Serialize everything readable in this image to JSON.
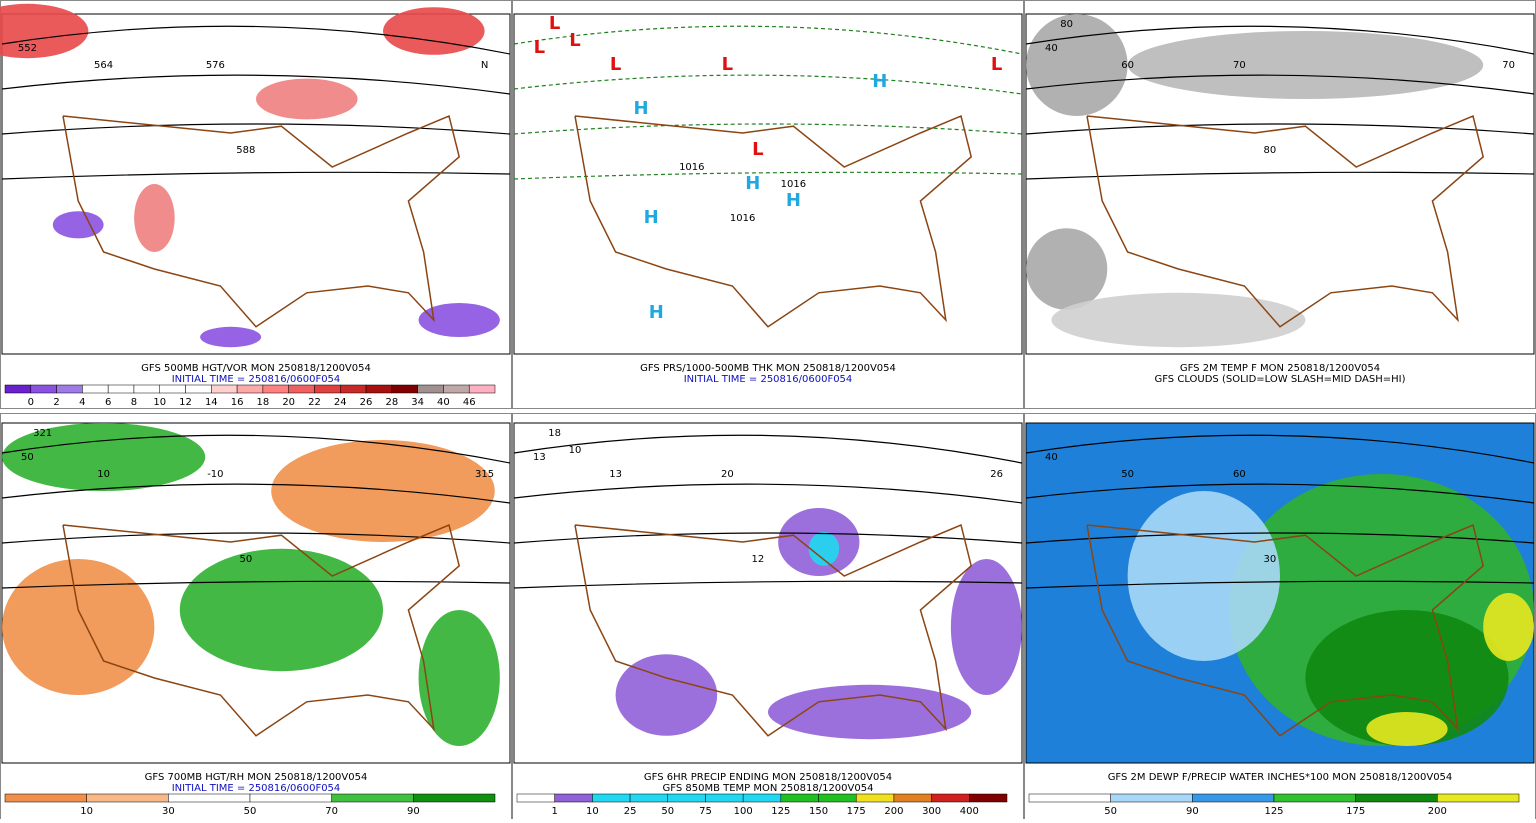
{
  "panels": [
    {
      "caption": [
        "GFS 500MB HGT/VOR MON 250818/1200V054",
        "INITIAL TIME = 250816/0600F054"
      ],
      "map_labels": [
        "552",
        "564",
        "576",
        "588",
        "N"
      ],
      "colorbar": {
        "labels": [
          0,
          2,
          4,
          6,
          8,
          10,
          12,
          14,
          16,
          18,
          20,
          22,
          24,
          26,
          28,
          34,
          40,
          46
        ],
        "colors": [
          "#6a1fd0",
          "#8a52e0",
          "#a07ae8",
          "#ffffff",
          "#ffffff",
          "#ffffff",
          "#ffffff",
          "#ffffff",
          "#ffd0d0",
          "#ffa8a8",
          "#ff8080",
          "#f06060",
          "#e04040",
          "#c82828",
          "#a81010",
          "#800000",
          "#a09090",
          "#c0a8a8",
          "#ffb0c0"
        ]
      }
    },
    {
      "caption": [
        "GFS PRS/1000-500MB THK MON 250818/1200V054",
        "INITIAL TIME = 250816/0600F054"
      ],
      "map_labels": [
        "L",
        "L",
        "L",
        "L",
        "L",
        "L",
        "L",
        "H",
        "H",
        "H",
        "H",
        "H",
        "H",
        "1016",
        "1016",
        "1016"
      ]
    },
    {
      "caption": [
        "GFS 2M TEMP F MON 250818/1200V054",
        "GFS CLOUDS (SOLID=LOW SLASH=MID DASH=HI)"
      ],
      "map_labels": [
        "40",
        "60",
        "70",
        "80",
        "70",
        "80"
      ]
    },
    {
      "caption": [
        "GFS 700MB HGT/RH MON 250818/1200V054",
        "INITIAL TIME = 250816/0600F054"
      ],
      "map_labels": [
        "50",
        "10",
        "-10",
        "50",
        "315",
        "321"
      ],
      "colorbar": {
        "labels": [
          10,
          30,
          50,
          70,
          90
        ],
        "colors": [
          "#f0904a",
          "#f8b888",
          "#ffffff",
          "#ffffff",
          "#40c040",
          "#109010"
        ]
      }
    },
    {
      "caption": [
        "GFS 6HR PRECIP ENDING MON 250818/1200V054",
        "GFS 850MB TEMP MON 250818/1200V054"
      ],
      "map_labels": [
        "13",
        "13",
        "20",
        "12",
        "26",
        "18",
        "10"
      ],
      "colorbar": {
        "labels": [
          1,
          10,
          25,
          50,
          75,
          100,
          125,
          150,
          175,
          200,
          300,
          400
        ],
        "colors": [
          "#ffffff",
          "#9060d8",
          "#20d8f0",
          "#20d8f0",
          "#20d8f0",
          "#20d8f0",
          "#20d8f0",
          "#20c020",
          "#20c020",
          "#f0e020",
          "#e08020",
          "#d02020",
          "#800000"
        ]
      }
    },
    {
      "caption": [
        "GFS 2M DEWP F/PRECIP WATER INCHES*100 MON 250818/1200V054"
      ],
      "map_labels": [
        "40",
        "50",
        "60",
        "30"
      ],
      "colorbar": {
        "labels": [
          50,
          90,
          125,
          175,
          200
        ],
        "colors": [
          "#ffffff",
          "#a8d8f8",
          "#3898e8",
          "#30c030",
          "#108810",
          "#e8e820"
        ]
      }
    }
  ]
}
